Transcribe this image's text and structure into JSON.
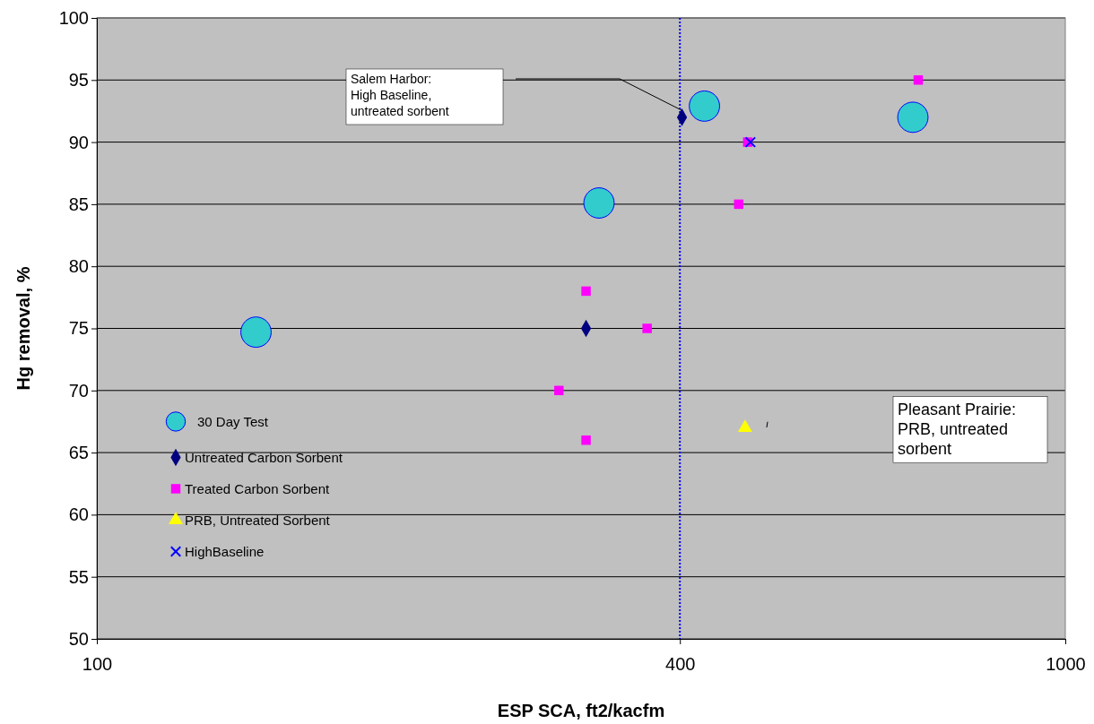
{
  "chart_data": {
    "type": "scatter",
    "xlabel": "ESP SCA, ft2/kacfm",
    "ylabel": "Hg removal, %",
    "log": "x",
    "xlim": [
      100,
      1000
    ],
    "xticks": [
      100,
      400,
      1000
    ],
    "ylim": [
      50,
      100
    ],
    "yticks": [
      50,
      55,
      60,
      65,
      70,
      75,
      80,
      85,
      90,
      95,
      100
    ],
    "grid": "y",
    "legend": "left",
    "series": [
      {
        "name": "30 Day Test",
        "color": "#33cccc",
        "marker": "circle",
        "x": [
          146,
          330,
          424,
          696
        ],
        "values": [
          74.7,
          85.1,
          92.9,
          92
        ]
      },
      {
        "name": "Untreated Carbon Sorbent",
        "color": "#000080",
        "marker": "diamond",
        "x": [
          320,
          402
        ],
        "values": [
          75,
          92
        ]
      },
      {
        "name": "Treated Carbon Sorbent",
        "color": "#ff00ff",
        "marker": "square",
        "x": [
          300,
          320,
          320,
          370,
          460,
          470,
          705
        ],
        "values": [
          70,
          78,
          66,
          75,
          85,
          90,
          95
        ]
      },
      {
        "name": "PRB, Untreated Sorbent",
        "color": "#ffff00",
        "marker": "triangle",
        "x": [
          467
        ],
        "values": [
          67
        ]
      },
      {
        "name": "HighBaseline",
        "color": "#0000ff",
        "marker": "cross",
        "x": [
          473
        ],
        "values": [
          90
        ]
      }
    ],
    "ref_lines": [
      {
        "axis": "x",
        "value": 400,
        "color": "#0000ff",
        "line_style": "dotted"
      }
    ],
    "annotations": [
      "Salem Harbor:\nHigh Baseline,\nuntreated sorbent",
      "Pleasant Prairie:\nPRB, untreated\nsorbent"
    ]
  }
}
